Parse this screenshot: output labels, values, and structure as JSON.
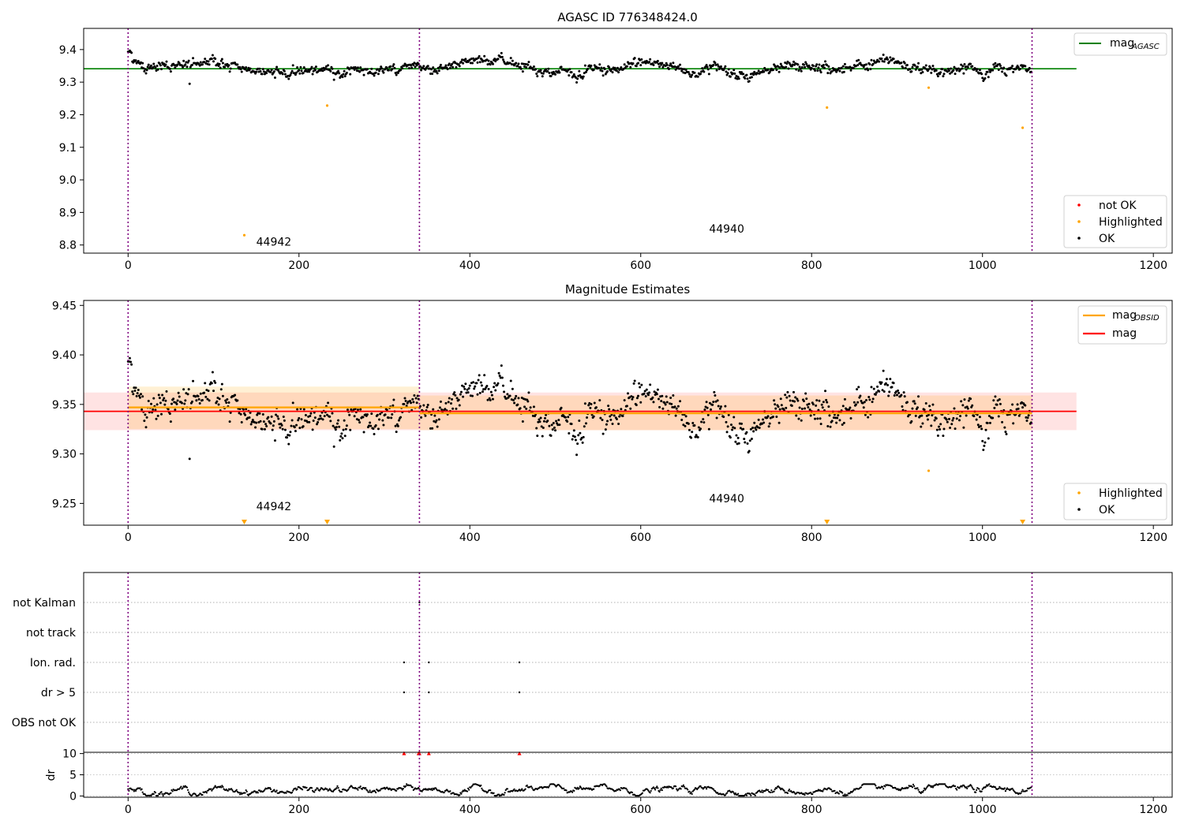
{
  "chart_data": [
    {
      "type": "scatter",
      "title": "AGASC ID 776348424.0",
      "xlim": [
        -52,
        1222
      ],
      "ylim": [
        8.775,
        9.465
      ],
      "xticks": [
        0,
        200,
        400,
        600,
        800,
        1000,
        1200
      ],
      "yticks": [
        8.8,
        8.9,
        9.0,
        9.1,
        9.2,
        9.3,
        9.4
      ],
      "obs_boundaries": [
        0,
        341,
        1058
      ],
      "obs_labels": [
        {
          "text": "44942",
          "x": 150,
          "y": 8.81
        },
        {
          "text": "44940",
          "x": 680,
          "y": 8.85
        }
      ],
      "reference_line": {
        "name": "mag_AGASC",
        "y": 9.341,
        "x": [
          -52,
          1110
        ],
        "color": "#008000"
      },
      "highlighted_points": [
        {
          "x": 136,
          "y": 8.83
        },
        {
          "x": 233,
          "y": 9.228
        },
        {
          "x": 818,
          "y": 9.222
        },
        {
          "x": 937,
          "y": 9.283
        },
        {
          "x": 1047,
          "y": 9.16
        }
      ],
      "ok_series": {
        "note_outlier": {
          "x": 72,
          "y": 9.295
        }
      },
      "legend_lines": [
        {
          "label": "mag",
          "sub": "AGASC",
          "color": "#008000"
        }
      ],
      "legend_points": [
        {
          "label": "not OK",
          "color": "#ff0000"
        },
        {
          "label": "Highlighted",
          "color": "#ffa500"
        },
        {
          "label": "OK",
          "color": "#000000"
        }
      ]
    },
    {
      "type": "scatter",
      "title": "Magnitude Estimates",
      "xlim": [
        -52,
        1222
      ],
      "ylim": [
        9.228,
        9.455
      ],
      "xticks": [
        0,
        200,
        400,
        600,
        800,
        1000,
        1200
      ],
      "yticks": [
        9.25,
        9.3,
        9.35,
        9.4,
        9.45
      ],
      "obs_boundaries": [
        0,
        341,
        1058
      ],
      "obs_labels": [
        {
          "text": "44942",
          "x": 150,
          "y": 9.247
        },
        {
          "text": "44940",
          "x": 680,
          "y": 9.255
        }
      ],
      "mag_line": {
        "name": "mag",
        "y": 9.343,
        "band": [
          9.324,
          9.362
        ],
        "x": [
          -52,
          1110
        ],
        "color": "#ff0000"
      },
      "obsid_lines": [
        {
          "x": [
            0,
            341
          ],
          "y": 9.347,
          "band": [
            9.325,
            9.368
          ]
        },
        {
          "x": [
            341,
            1058
          ],
          "y": 9.341,
          "band": [
            9.324,
            9.359
          ]
        }
      ],
      "highlighted_points": [
        {
          "x": 937,
          "y": 9.283
        }
      ],
      "offscale_markers": [
        136,
        233,
        818,
        1047
      ],
      "legend_lines": [
        {
          "label": "mag",
          "sub": "OBSID",
          "color": "#ffa500"
        },
        {
          "label": "mag",
          "sub": "",
          "color": "#ff0000"
        }
      ],
      "legend_points": [
        {
          "label": "Highlighted",
          "color": "#ffa500"
        },
        {
          "label": "OK",
          "color": "#000000"
        }
      ]
    },
    {
      "type": "scatter",
      "title": "",
      "xlim": [
        -52,
        1222
      ],
      "xticks": [
        0,
        200,
        400,
        600,
        800,
        1000,
        1200
      ],
      "obs_boundaries": [
        0,
        341,
        1058
      ],
      "flag_rows": [
        "not Kalman",
        "not track",
        "Ion. rad.",
        "dr > 5",
        "OBS not OK"
      ],
      "flag_points": [
        {
          "row": "not Kalman",
          "x": [
            341
          ]
        },
        {
          "row": "Ion. rad.",
          "x": [
            323,
            352,
            458
          ]
        },
        {
          "row": "dr > 5",
          "x": [
            323,
            352,
            458
          ]
        }
      ],
      "dr_ylabel": "dr",
      "dr_yticks": [
        0,
        5,
        10
      ],
      "dr_ylim": [
        -0.3,
        10.3
      ],
      "dr_clipped_points": [
        323,
        340,
        341,
        352,
        458
      ]
    }
  ]
}
